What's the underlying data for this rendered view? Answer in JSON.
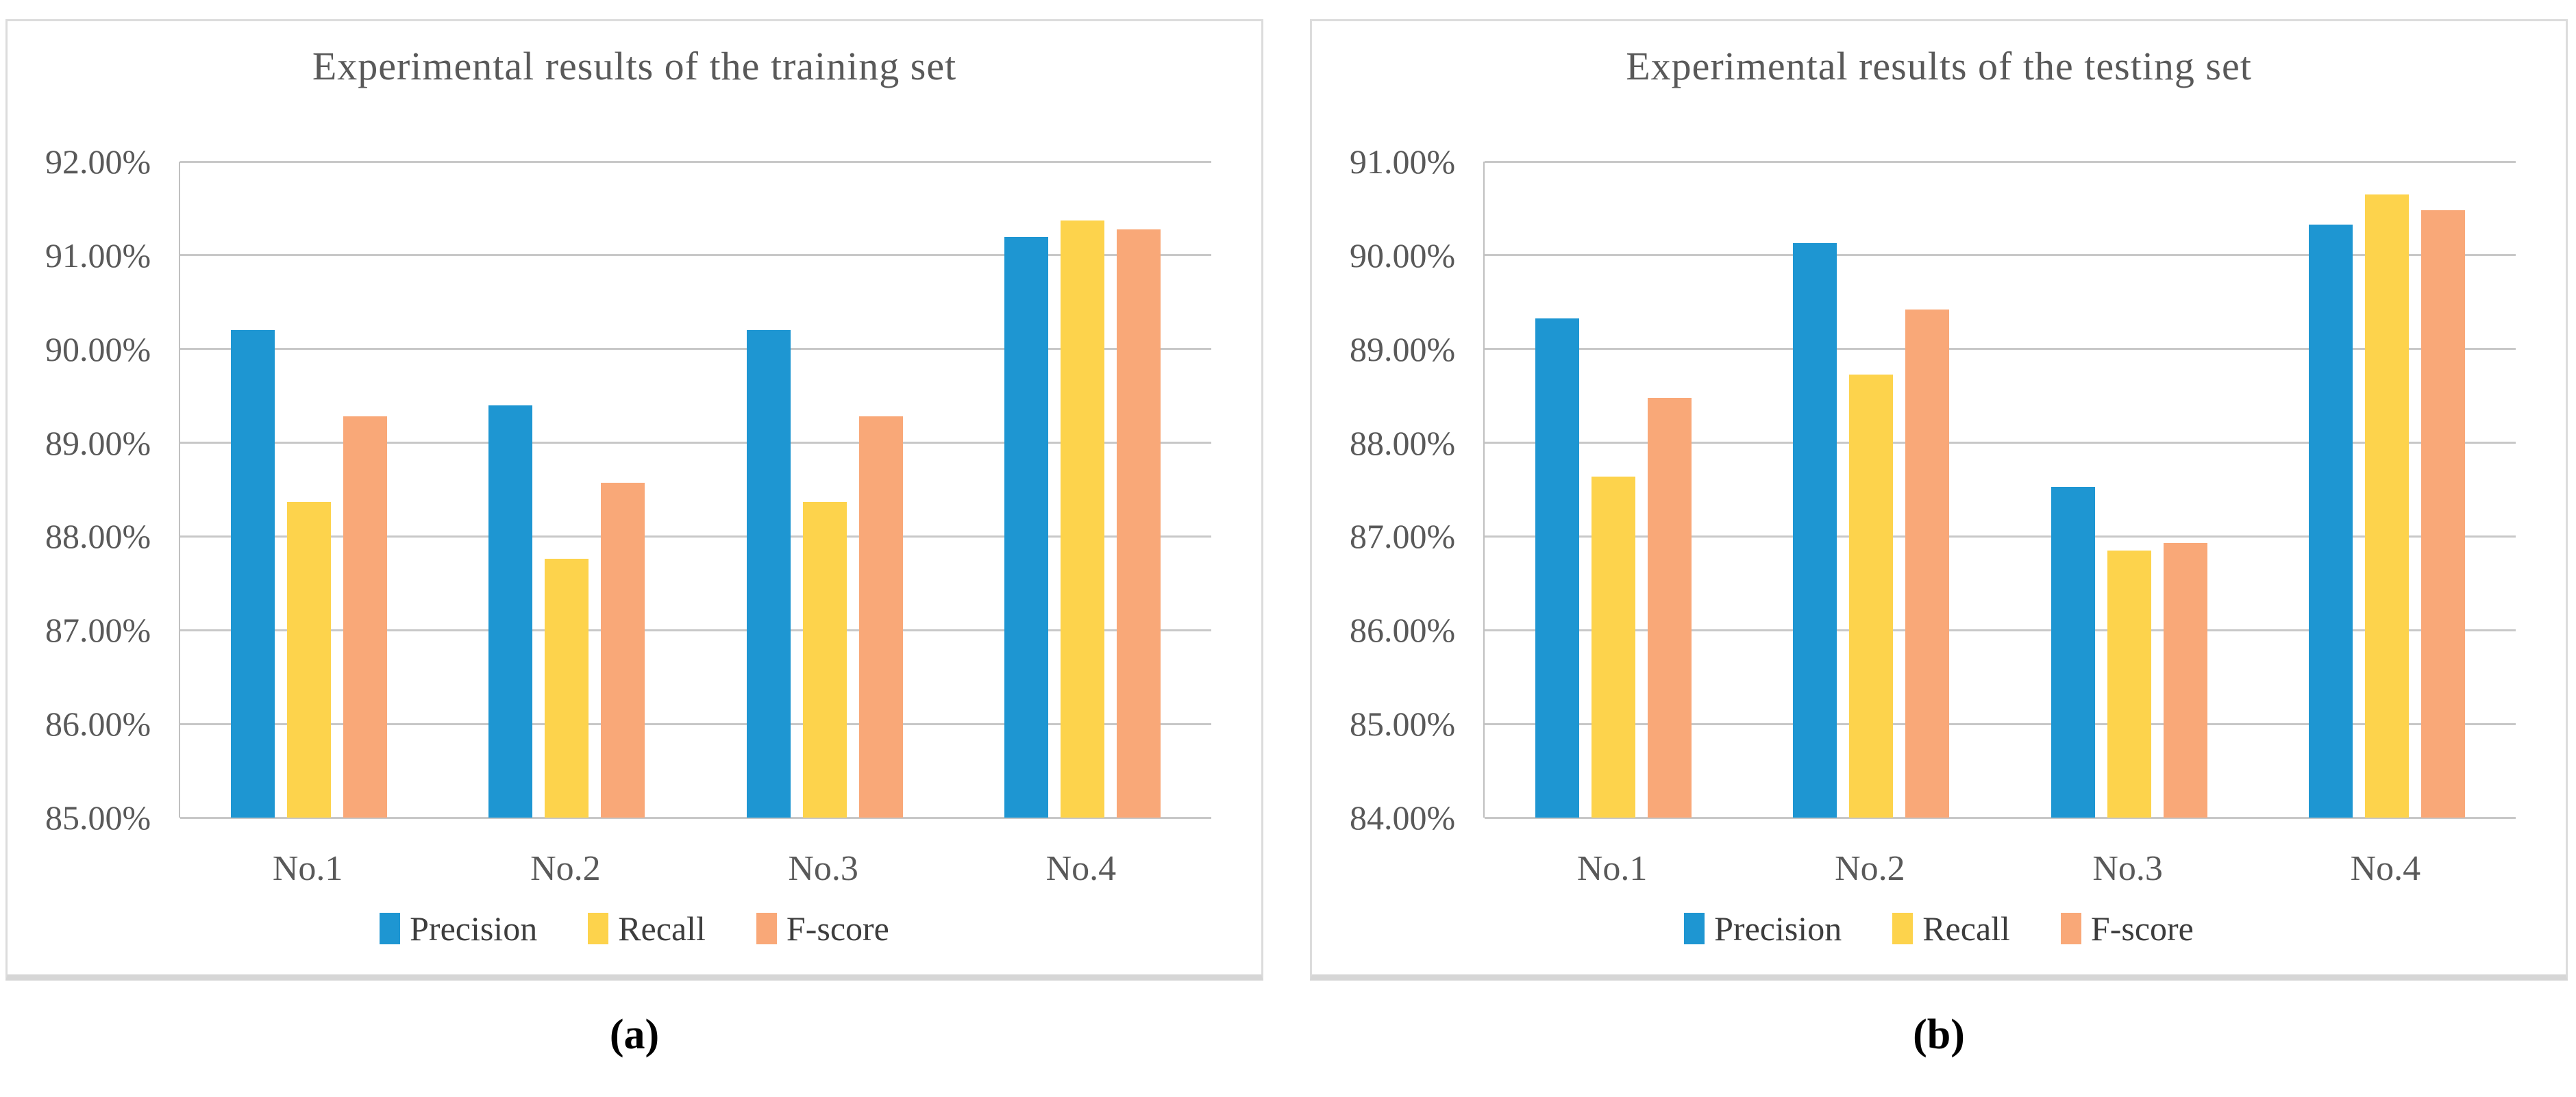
{
  "figure": {
    "background": "#ffffff",
    "panel_border_color": "#DCDCDC",
    "gridline_color": "#C8C8C8",
    "axis_text_color": "#595959",
    "legend_text_color": "#3d3d3d"
  },
  "chart_data": [
    {
      "type": "bar",
      "title": "Experimental results of the training set",
      "caption": "(a)",
      "categories": [
        "No.1",
        "No.2",
        "No.3",
        "No.4"
      ],
      "series": [
        {
          "name": "Precision",
          "color": "#1E96D2",
          "values": [
            90.2,
            89.4,
            90.2,
            91.2
          ]
        },
        {
          "name": "Recall",
          "color": "#FDD34C",
          "values": [
            88.37,
            87.76,
            88.37,
            91.37
          ]
        },
        {
          "name": "F-score",
          "color": "#F9A878",
          "values": [
            89.28,
            88.57,
            89.28,
            91.28
          ]
        }
      ],
      "ylim": [
        85,
        92
      ],
      "ytick_step": 1,
      "yticks": [
        "92.00%",
        "91.00%",
        "90.00%",
        "89.00%",
        "88.00%",
        "87.00%",
        "86.00%",
        "85.00%"
      ],
      "grid": true,
      "legend_position": "bottom"
    },
    {
      "type": "bar",
      "title": "Experimental results of the testing set",
      "caption": "(b)",
      "categories": [
        "No.1",
        "No.2",
        "No.3",
        "No.4"
      ],
      "series": [
        {
          "name": "Precision",
          "color": "#1E96D2",
          "values": [
            89.33,
            90.13,
            87.53,
            90.33
          ]
        },
        {
          "name": "Recall",
          "color": "#FDD34C",
          "values": [
            87.64,
            88.73,
            86.85,
            90.65
          ]
        },
        {
          "name": "F-score",
          "color": "#F9A878",
          "values": [
            88.48,
            89.42,
            86.93,
            90.48
          ]
        }
      ],
      "ylim": [
        84,
        91
      ],
      "ytick_step": 1,
      "yticks": [
        "91.00%",
        "90.00%",
        "89.00%",
        "88.00%",
        "87.00%",
        "86.00%",
        "85.00%",
        "84.00%"
      ],
      "grid": true,
      "legend_position": "bottom"
    }
  ]
}
